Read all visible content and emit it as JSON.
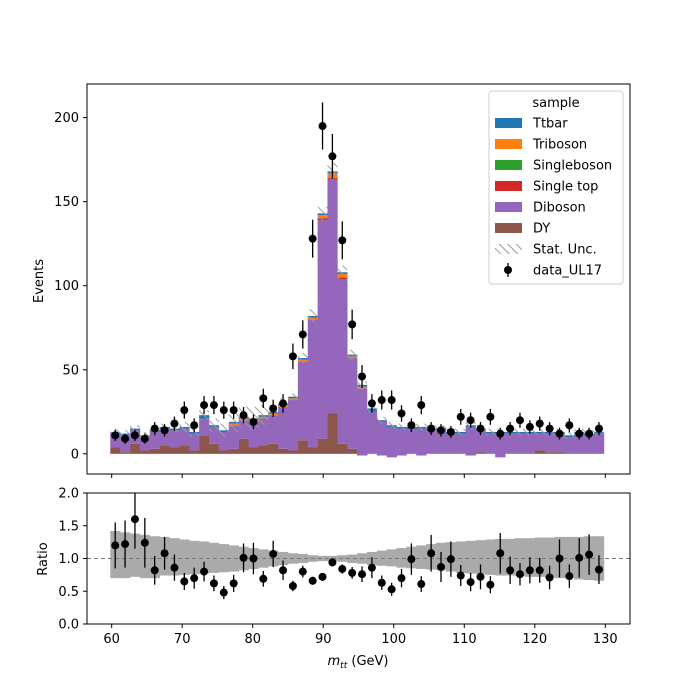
{
  "chart_data": [
    {
      "type": "bar",
      "subtype": "stacked-histogram-with-data-points",
      "xlabel": "",
      "ylabel": "Events",
      "xlim": [
        56.5,
        133.5
      ],
      "ylim": [
        -12,
        220
      ],
      "yticks": [
        0,
        50,
        100,
        150,
        200
      ],
      "x_bin_edges_range": [
        60.5,
        130.5
      ],
      "x_bin_width": 1.4,
      "legend": {
        "title": "sample",
        "position": "top-right",
        "entries": [
          {
            "label": "Ttbar",
            "color": "#1f77b4",
            "kind": "patch"
          },
          {
            "label": "Triboson",
            "color": "#ff7f0e",
            "kind": "patch"
          },
          {
            "label": "Singleboson",
            "color": "#2ca02c",
            "kind": "patch"
          },
          {
            "label": "Single top",
            "color": "#d62728",
            "kind": "patch"
          },
          {
            "label": "Diboson",
            "color": "#9467bd",
            "kind": "patch"
          },
          {
            "label": "DY",
            "color": "#8c564b",
            "kind": "patch"
          },
          {
            "label": "Stat. Unc.",
            "color": "#9a9a9a",
            "kind": "hatch"
          },
          {
            "label": "data_UL17",
            "color": "#000000",
            "kind": "errorbar"
          }
        ]
      },
      "series_mc_stack": [
        {
          "name": "DY",
          "color": "#8c564b",
          "values": [
            4,
            1,
            6,
            2,
            3,
            5,
            4,
            5,
            2,
            11,
            6,
            2,
            3,
            9,
            4,
            5,
            6,
            3,
            2,
            8,
            4,
            9,
            24,
            6,
            3,
            -1,
            0,
            -1,
            -2,
            -1,
            0,
            -1,
            0,
            0,
            0,
            0,
            -1,
            1,
            0,
            -2,
            0,
            0,
            0,
            2,
            1,
            1,
            0,
            0,
            0,
            0
          ]
        },
        {
          "name": "Diboson",
          "color": "#9467bd",
          "values": [
            8,
            10,
            8,
            8,
            10,
            10,
            10,
            10,
            10,
            10,
            10,
            11,
            14,
            11,
            15,
            16,
            17,
            25,
            30,
            47,
            76,
            130,
            139,
            98,
            54,
            40,
            25,
            20,
            18,
            16,
            15,
            16,
            14,
            14,
            12,
            12,
            17,
            13,
            12,
            14,
            12,
            12,
            12,
            10,
            11,
            11,
            10,
            12,
            11,
            12
          ]
        },
        {
          "name": "Single top",
          "color": "#d62728",
          "values": [
            0,
            0,
            0,
            0,
            0,
            0,
            0,
            0,
            0,
            0,
            0,
            0,
            0,
            0,
            0,
            0,
            0,
            0,
            0,
            0,
            0,
            1,
            1,
            1,
            0,
            0,
            0,
            0,
            0,
            0,
            0,
            0,
            0,
            0,
            0,
            0,
            0,
            0,
            0,
            0,
            0,
            0,
            0,
            0,
            0,
            0,
            0,
            0,
            0,
            0
          ]
        },
        {
          "name": "Singleboson",
          "color": "#2ca02c",
          "values": [
            0,
            0,
            0,
            0,
            0,
            0,
            0,
            0,
            0,
            0,
            0,
            0,
            0,
            0,
            0,
            0,
            0,
            0,
            0,
            0,
            0,
            0,
            0,
            0,
            0,
            0,
            0,
            0,
            0,
            0,
            0,
            0,
            0,
            0,
            0,
            0,
            0,
            0,
            0,
            0,
            0,
            0,
            0,
            0,
            0,
            0,
            0,
            0,
            0,
            0
          ]
        },
        {
          "name": "Triboson",
          "color": "#ff7f0e",
          "values": [
            0,
            0,
            0,
            0,
            0,
            0,
            0,
            0,
            0,
            0,
            0,
            0,
            1,
            1,
            1,
            1,
            1,
            1,
            1,
            1,
            1,
            2,
            3,
            2,
            1,
            1,
            0,
            0,
            0,
            0,
            0,
            0,
            0,
            0,
            0,
            0,
            0,
            0,
            0,
            0,
            0,
            0,
            0,
            0,
            0,
            0,
            0,
            0,
            0,
            0
          ]
        },
        {
          "name": "Ttbar",
          "color": "#1f77b4",
          "values": [
            1,
            1,
            1,
            1,
            1,
            1,
            1,
            1,
            1,
            2,
            1,
            1,
            1,
            1,
            1,
            1,
            1,
            1,
            1,
            1,
            1,
            1,
            1,
            1,
            1,
            1,
            2,
            1,
            1,
            1,
            1,
            1,
            1,
            1,
            1,
            1,
            1,
            1,
            1,
            1,
            1,
            1,
            1,
            1,
            1,
            1,
            1,
            1,
            1,
            1
          ]
        }
      ],
      "mc_stat_unc": [
        2,
        2,
        2,
        2,
        2,
        2,
        2,
        3,
        3,
        3,
        4,
        4,
        6,
        6,
        7,
        6,
        4,
        3,
        2,
        3,
        4,
        4,
        5,
        4,
        3,
        2,
        2,
        2,
        2,
        2,
        2,
        2,
        2,
        2,
        2,
        2,
        2,
        2,
        2,
        2,
        2,
        2,
        2,
        2,
        2,
        2,
        2,
        2,
        2,
        2
      ],
      "data_points": {
        "name": "data_UL17",
        "x": [
          60.5,
          61.9,
          63.3,
          64.7,
          66.1,
          67.5,
          68.9,
          70.3,
          71.7,
          73.1,
          74.5,
          75.9,
          77.3,
          78.7,
          80.1,
          81.5,
          82.9,
          84.3,
          85.7,
          87.1,
          88.5,
          89.9,
          91.3,
          92.7,
          94.1,
          95.5,
          96.9,
          98.3,
          99.7,
          101.1,
          102.5,
          103.9,
          105.3,
          106.7,
          108.1,
          109.5,
          110.9,
          112.3,
          113.7,
          115.1,
          116.5,
          117.9,
          119.3,
          120.7,
          122.1,
          123.5,
          124.9,
          126.3,
          127.7,
          129.1
        ],
        "y": [
          11,
          9,
          11,
          9,
          15,
          14,
          18,
          26,
          17,
          29,
          29,
          26,
          26,
          23,
          19,
          33,
          27,
          30,
          58,
          71,
          128,
          195,
          177,
          127,
          77,
          46,
          30,
          32,
          32,
          24,
          17,
          29,
          15,
          14,
          13,
          22,
          20,
          15,
          22,
          12,
          15,
          20,
          16,
          18,
          15,
          12,
          17,
          12,
          12,
          15
        ],
        "yerr": [
          3.3,
          3,
          3.3,
          3,
          3.9,
          3.7,
          4.2,
          5.1,
          4.1,
          5.4,
          5.4,
          5.1,
          5.1,
          4.8,
          4.4,
          5.7,
          5.2,
          5.5,
          7.6,
          8.4,
          11.3,
          14,
          13.3,
          11.3,
          8.8,
          6.8,
          5.5,
          5.7,
          5.7,
          4.9,
          4.1,
          5.4,
          3.9,
          3.7,
          3.6,
          4.7,
          4.5,
          3.9,
          4.7,
          3.5,
          3.9,
          4.5,
          4,
          4.2,
          3.9,
          3.5,
          4.1,
          3.5,
          3.5,
          3.9
        ]
      }
    },
    {
      "type": "scatter",
      "subtype": "ratio-panel",
      "xlabel": "m_tt (GeV)",
      "xlabel_main": "m",
      "xlabel_sub": "tt",
      "xlabel_unit": " (GeV)",
      "ylabel": "Ratio",
      "xlim": [
        56.5,
        133.5
      ],
      "ylim": [
        0,
        2
      ],
      "xticks": [
        60,
        70,
        80,
        90,
        100,
        110,
        120,
        130
      ],
      "yticks": [
        0.0,
        0.5,
        1.0,
        1.5,
        2.0
      ],
      "ytick_labels": [
        "0.0",
        "0.5",
        "1.0",
        "1.5",
        "2.0"
      ],
      "reference_line": 1.0,
      "unc_band_color": "#aaaaaa",
      "unc_band": {
        "low": [
          0.7,
          0.7,
          0.72,
          0.7,
          0.7,
          0.74,
          0.74,
          0.75,
          0.76,
          0.77,
          0.78,
          0.79,
          0.8,
          0.82,
          0.84,
          0.86,
          0.88,
          0.9,
          0.92,
          0.93,
          0.95,
          0.96,
          0.96,
          0.95,
          0.93,
          0.92,
          0.9,
          0.89,
          0.88,
          0.86,
          0.85,
          0.84,
          0.83,
          0.82,
          0.8,
          0.78,
          0.77,
          0.76,
          0.75,
          0.74,
          0.74,
          0.73,
          0.72,
          0.72,
          0.71,
          0.7,
          0.7,
          0.68,
          0.67,
          0.66
        ],
        "high": [
          1.42,
          1.4,
          1.38,
          1.36,
          1.34,
          1.33,
          1.31,
          1.29,
          1.27,
          1.26,
          1.24,
          1.22,
          1.2,
          1.18,
          1.16,
          1.14,
          1.12,
          1.1,
          1.08,
          1.07,
          1.05,
          1.04,
          1.04,
          1.05,
          1.06,
          1.08,
          1.1,
          1.12,
          1.14,
          1.16,
          1.18,
          1.2,
          1.22,
          1.24,
          1.25,
          1.26,
          1.27,
          1.28,
          1.29,
          1.3,
          1.3,
          1.31,
          1.31,
          1.32,
          1.32,
          1.33,
          1.33,
          1.33,
          1.34,
          1.34
        ]
      },
      "points": {
        "x": [
          60.5,
          61.9,
          63.3,
          64.7,
          66.1,
          67.5,
          68.9,
          70.3,
          71.7,
          73.1,
          74.5,
          75.9,
          77.3,
          78.7,
          80.1,
          81.5,
          82.9,
          84.3,
          85.7,
          87.1,
          88.5,
          89.9,
          91.3,
          92.7,
          94.1,
          95.5,
          96.9,
          98.3,
          99.7,
          101.1,
          102.5,
          103.9,
          105.3,
          106.7,
          108.1,
          109.5,
          110.9,
          112.3,
          113.7,
          115.1,
          116.5,
          117.9,
          119.3,
          120.7,
          122.1,
          123.5,
          124.9,
          126.3,
          127.7,
          129.1
        ],
        "y": [
          1.2,
          1.22,
          1.6,
          1.24,
          0.82,
          1.08,
          0.86,
          0.65,
          0.7,
          0.8,
          0.62,
          0.48,
          0.62,
          1.01,
          1.0,
          0.69,
          1.07,
          0.82,
          0.58,
          0.8,
          0.66,
          0.72,
          0.94,
          0.84,
          0.78,
          0.76,
          0.86,
          0.63,
          0.53,
          0.7,
          0.99,
          0.61,
          1.08,
          0.87,
          0.99,
          0.74,
          0.64,
          0.72,
          0.6,
          1.08,
          0.82,
          0.76,
          0.82,
          0.82,
          0.71,
          1.0,
          0.73,
          1.01,
          1.06,
          0.83
        ],
        "yerr": [
          0.35,
          0.36,
          0.45,
          0.38,
          0.22,
          0.25,
          0.2,
          0.13,
          0.16,
          0.15,
          0.12,
          0.1,
          0.13,
          0.22,
          0.24,
          0.12,
          0.2,
          0.15,
          0.08,
          0.09,
          0.06,
          0.06,
          0.06,
          0.07,
          0.09,
          0.12,
          0.16,
          0.11,
          0.1,
          0.14,
          0.24,
          0.12,
          0.28,
          0.23,
          0.27,
          0.16,
          0.14,
          0.19,
          0.13,
          0.31,
          0.21,
          0.17,
          0.2,
          0.19,
          0.18,
          0.29,
          0.18,
          0.3,
          0.31,
          0.22
        ]
      }
    }
  ]
}
